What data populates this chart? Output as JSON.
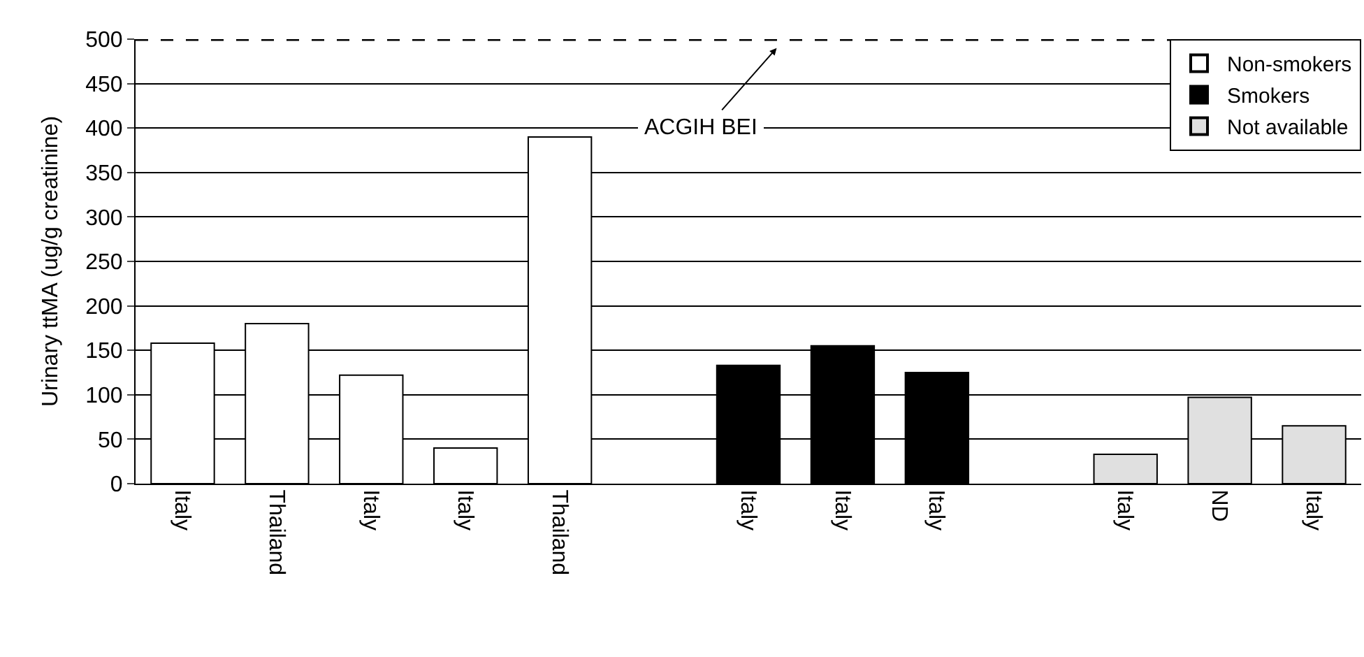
{
  "chart_data": {
    "type": "bar",
    "ylabel": "Urinary ttMA (ug/g creatinine)",
    "categories": [
      "Italy",
      "Thailand",
      "Italy",
      "Italy",
      "Thailand",
      null,
      "Italy",
      "Italy",
      "Italy",
      null,
      "Italy",
      "ND",
      "Italy"
    ],
    "series": [
      {
        "name": "Non-smokers",
        "color": "#ffffff",
        "values": [
          158,
          180,
          122,
          40,
          390,
          null,
          null,
          null,
          null,
          null,
          null,
          null,
          null
        ]
      },
      {
        "name": "Smokers",
        "color": "#000000",
        "values": [
          null,
          null,
          null,
          null,
          null,
          null,
          133,
          155,
          125,
          null,
          null,
          null,
          null
        ]
      },
      {
        "name": "Not available",
        "color": "#e0e0e0",
        "values": [
          null,
          null,
          null,
          null,
          null,
          null,
          null,
          null,
          null,
          null,
          33,
          97,
          65
        ]
      }
    ],
    "ylim": [
      0,
      500
    ],
    "yticks": [
      0,
      50,
      100,
      150,
      200,
      250,
      300,
      350,
      400,
      450,
      500
    ],
    "grid": "y",
    "legend": "top right",
    "ref_lines": [
      {
        "axis": "y",
        "value": 500,
        "label": "ACGIH BEI",
        "line_style": "dashed",
        "color": "#000000"
      }
    ]
  }
}
